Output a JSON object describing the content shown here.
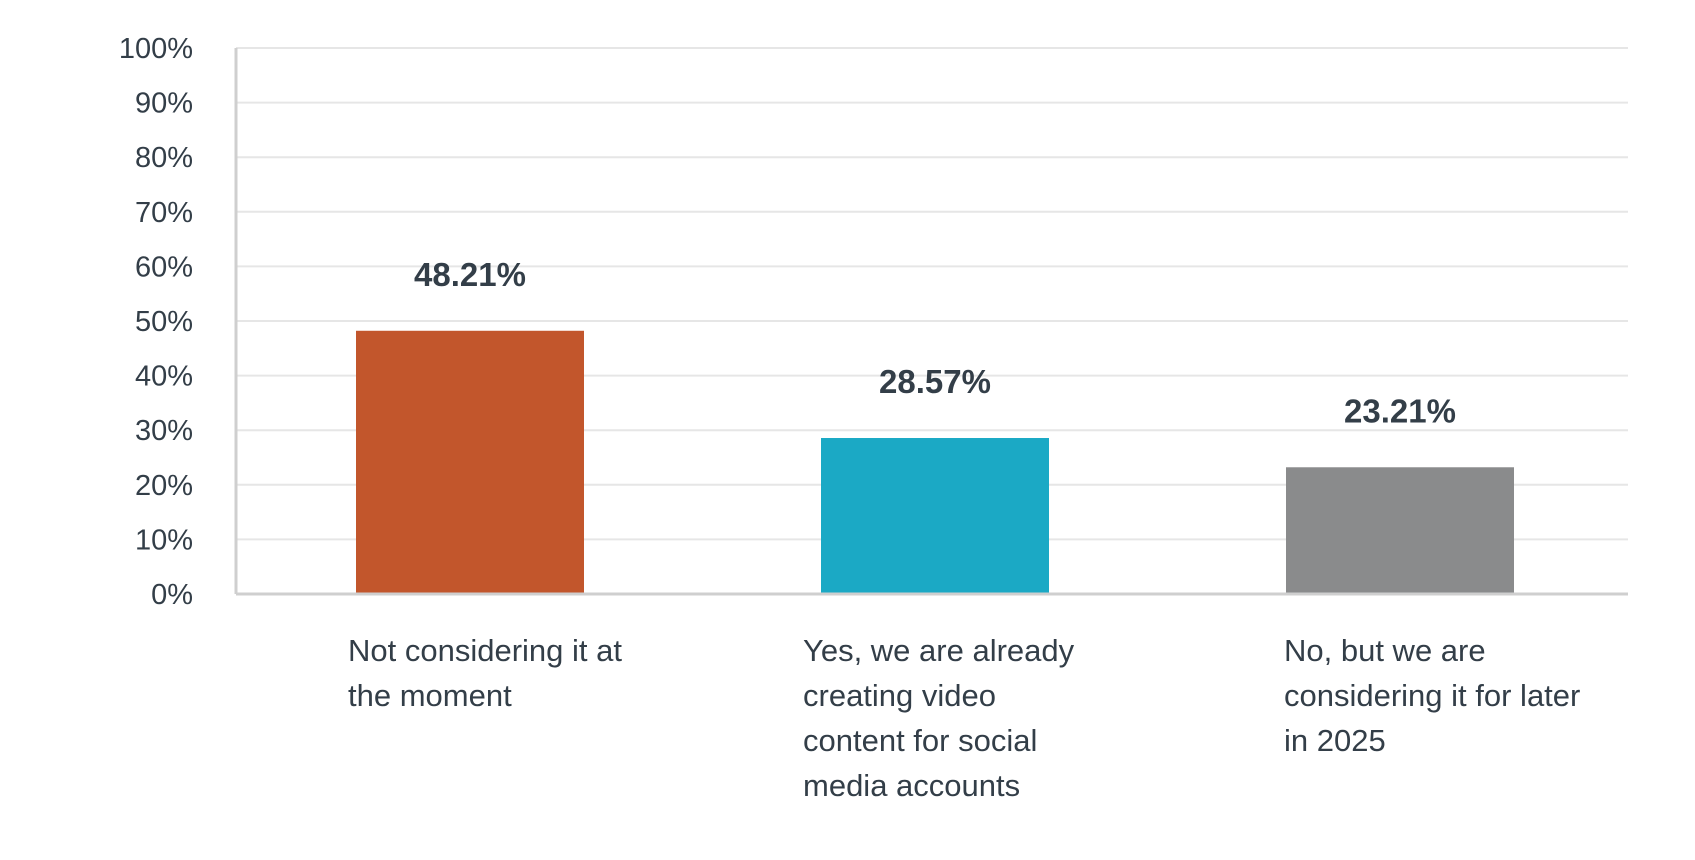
{
  "chart_data": {
    "type": "bar",
    "title": "",
    "xlabel": "",
    "ylabel": "",
    "categories": [
      "Not considering it at the moment",
      "Yes, we are already creating video content for social media accounts",
      "No, but we are considering it for later in 2025"
    ],
    "values": [
      48.21,
      28.57,
      23.21
    ],
    "data_labels": [
      "48.21%",
      "28.57%",
      "23.21%"
    ],
    "colors": [
      "#c2562c",
      "#1ba9c5",
      "#8a8b8c"
    ],
    "ylim": [
      0,
      100
    ],
    "yticks": [
      0,
      10,
      20,
      30,
      40,
      50,
      60,
      70,
      80,
      90,
      100
    ],
    "ytick_labels": [
      "0%",
      "10%",
      "20%",
      "30%",
      "40%",
      "50%",
      "60%",
      "70%",
      "80%",
      "90%",
      "100%"
    ],
    "grid": true,
    "legend": "none"
  }
}
